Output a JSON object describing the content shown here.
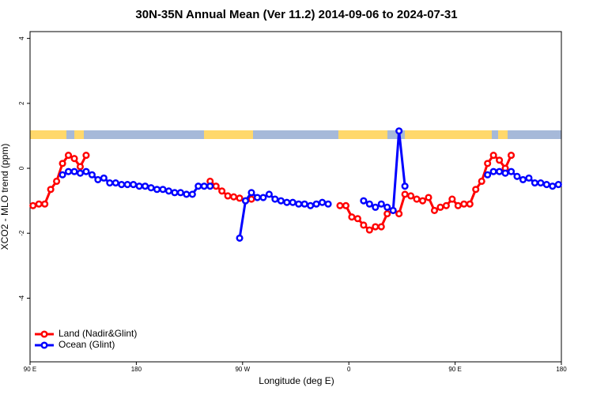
{
  "chart_data": {
    "type": "line",
    "title": "30N-35N Annual Mean (Ver 11.2)   2014-09-06 to 2024-07-31",
    "x_label": "Longitude (deg E)",
    "y_label": "XCO2 - MLO trend (ppm)",
    "x": [
      92.5,
      97.5,
      102.5,
      107.5,
      112.5,
      117.5,
      122.5,
      127.5,
      132.5,
      137.5,
      142.5,
      147.5,
      152.5,
      157.5,
      162.5,
      167.5,
      172.5,
      177.5,
      182.5,
      187.5,
      192.5,
      197.5,
      202.5,
      207.5,
      212.5,
      217.5,
      222.5,
      227.5,
      232.5,
      237.5,
      242.5,
      247.5,
      252.5,
      257.5,
      262.5,
      267.5,
      272.5,
      277.5,
      282.5,
      287.5,
      292.5,
      297.5,
      302.5,
      307.5,
      312.5,
      317.5,
      322.5,
      327.5,
      332.5,
      337.5,
      342.5,
      347.5,
      352.5,
      357.5,
      362.5,
      367.5,
      372.5,
      377.5,
      382.5,
      387.5,
      392.5,
      397.5,
      402.5,
      407.5,
      412.5,
      417.5,
      422.5,
      427.5,
      432.5,
      437.5,
      442.5,
      447.5,
      452.5,
      457.5,
      462.5,
      467.5,
      472.5,
      477.5,
      482.5,
      487.5,
      492.5,
      497.5,
      502.5,
      507.5,
      512.5,
      517.5,
      522.5,
      527.5,
      532.5,
      537.5
    ],
    "series": [
      {
        "name": "Land (Nadir&Glint)",
        "color": "#ff0000",
        "values": [
          -1.15,
          -1.1,
          -1.1,
          -0.65,
          -0.4,
          0.15,
          0.4,
          0.3,
          0.05,
          0.4,
          null,
          null,
          null,
          null,
          null,
          null,
          null,
          null,
          null,
          null,
          null,
          null,
          null,
          null,
          null,
          null,
          null,
          null,
          null,
          null,
          -0.4,
          -0.55,
          -0.7,
          -0.85,
          -0.88,
          -0.92,
          -1.0,
          -0.95,
          null,
          null,
          null,
          null,
          null,
          null,
          null,
          null,
          null,
          null,
          null,
          null,
          null,
          null,
          -1.15,
          -1.15,
          -1.5,
          -1.55,
          -1.75,
          -1.9,
          -1.8,
          -1.8,
          -1.4,
          -1.3,
          -1.4,
          -0.8,
          -0.85,
          -0.95,
          -1.0,
          -0.9,
          -1.3,
          -1.2,
          -1.15,
          -0.95,
          -1.15,
          -1.1,
          -1.1,
          -0.65,
          -0.4,
          0.15,
          0.4,
          0.25,
          0.0,
          0.4,
          null,
          null,
          null,
          null,
          null,
          null,
          null,
          null
        ]
      },
      {
        "name": "Ocean (Glint)",
        "color": "#0000ff",
        "values": [
          null,
          null,
          null,
          null,
          null,
          -0.2,
          -0.1,
          -0.1,
          -0.15,
          -0.1,
          -0.2,
          -0.35,
          -0.3,
          -0.45,
          -0.45,
          -0.5,
          -0.5,
          -0.5,
          -0.55,
          -0.55,
          -0.6,
          -0.65,
          -0.65,
          -0.7,
          -0.75,
          -0.75,
          -0.8,
          -0.8,
          -0.55,
          -0.55,
          -0.55,
          null,
          null,
          null,
          null,
          -2.15,
          -1.0,
          -0.75,
          -0.9,
          -0.9,
          -0.8,
          -0.95,
          -1.0,
          -1.05,
          -1.05,
          -1.1,
          -1.1,
          -1.15,
          -1.1,
          -1.05,
          -1.1,
          null,
          null,
          null,
          null,
          null,
          -1.0,
          -1.1,
          -1.2,
          -1.1,
          -1.2,
          -1.3,
          1.15,
          -0.55,
          null,
          null,
          null,
          null,
          null,
          null,
          null,
          null,
          null,
          null,
          null,
          null,
          null,
          -0.2,
          -0.1,
          -0.1,
          -0.15,
          -0.1,
          -0.25,
          -0.35,
          -0.3,
          -0.45,
          -0.45,
          -0.5,
          -0.55,
          -0.5
        ]
      }
    ],
    "xlim": [
      90,
      540
    ],
    "xticks": [
      {
        "value": 90,
        "label": "90 E"
      },
      {
        "value": 180,
        "label": "180"
      },
      {
        "value": 270,
        "label": "90 W"
      },
      {
        "value": 360,
        "label": "0"
      },
      {
        "value": 450,
        "label": "90 E"
      },
      {
        "value": 540,
        "label": "180"
      }
    ],
    "ylim": [
      -5.96,
      4.21
    ],
    "yticks": [
      -4,
      -2,
      0,
      2,
      4
    ],
    "legend": "bottom-left"
  }
}
